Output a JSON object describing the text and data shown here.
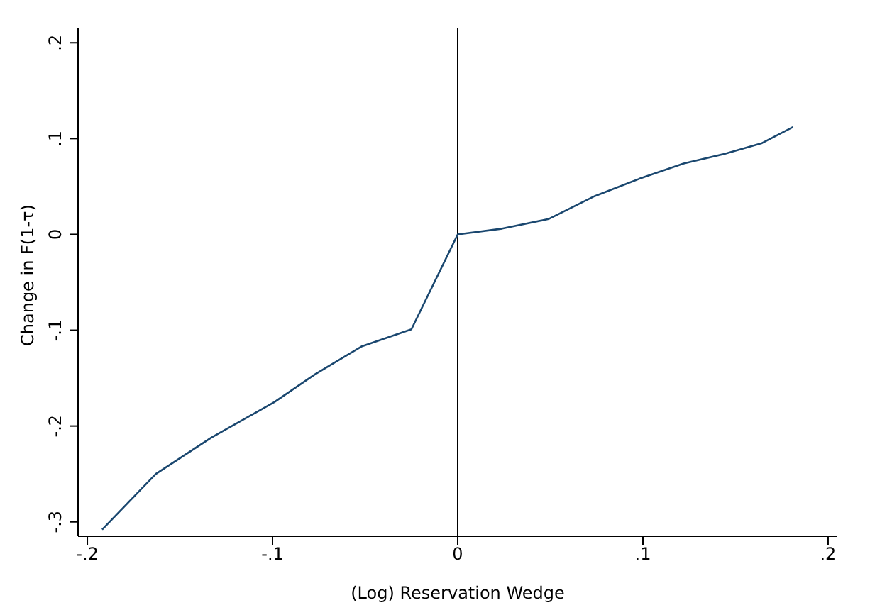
{
  "chart_data": {
    "type": "line",
    "xlabel": "(Log) Reservation Wedge",
    "ylabel": "Change in F(1-τ)",
    "x": [
      -0.192,
      -0.163,
      -0.133,
      -0.099,
      -0.077,
      -0.052,
      -0.025,
      0,
      0.024,
      0.049,
      0.074,
      0.098,
      0.122,
      0.144,
      0.164,
      0.181
    ],
    "series": [
      {
        "color": "#1a476f",
        "values": [
          -0.308,
          -0.25,
          -0.212,
          -0.175,
          -0.146,
          -0.117,
          -0.099,
          0,
          0.006,
          0.016,
          0.04,
          0.058,
          0.074,
          0.084,
          0.095,
          0.112
        ]
      }
    ],
    "xlim": [
      -0.205,
      0.205
    ],
    "ylim": [
      -0.315,
      0.215
    ],
    "xticks": [
      {
        "value": -0.2,
        "label": "-.2"
      },
      {
        "value": -0.1,
        "label": "-.1"
      },
      0,
      {
        "value": 0.1,
        "label": ".1"
      },
      {
        "value": 0.2,
        "label": ".2"
      }
    ],
    "yticks": [
      {
        "value": -0.3,
        "label": "-.3"
      },
      {
        "value": -0.2,
        "label": "-.2"
      },
      {
        "value": -0.1,
        "label": "-.1"
      },
      0,
      {
        "value": 0.1,
        "label": ".1"
      },
      {
        "value": 0.2,
        "label": ".2"
      }
    ],
    "ref_lines": [
      {
        "axis": "x",
        "value": 0,
        "color": "#000000"
      }
    ],
    "grid": false,
    "legend": false,
    "marker": "none",
    "line_style": "solid"
  }
}
